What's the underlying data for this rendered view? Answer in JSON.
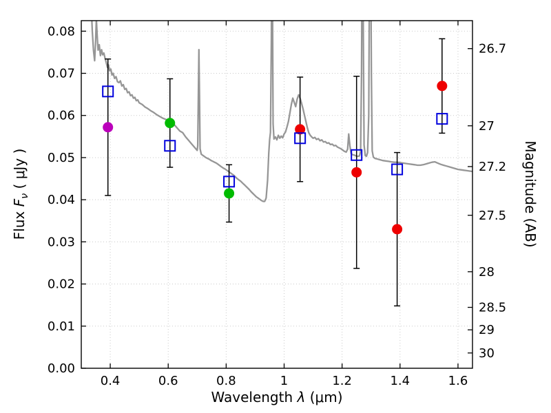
{
  "labels": {
    "xlabel_prefix": "Wavelength  ",
    "xlabel_symbol": "λ",
    "xlabel_suffix": " (μm)",
    "ylabel_left_prefix": "Flux  ",
    "ylabel_left_symbol": "F",
    "ylabel_left_subscript": "ν",
    "ylabel_left_suffix": "  ( μJy )",
    "ylabel_right": "Magnitude (AB)"
  },
  "style": {
    "background": "#ffffff",
    "frame_color": "#000000",
    "grid_color": "#c8c8c8",
    "spectrum_color": "#969696",
    "square_color": "#0000dd",
    "errorbar_color": "#000000",
    "tick_label_size": 18
  },
  "chart_data": {
    "type": "line",
    "title": "",
    "xlabel": "Wavelength λ (μm)",
    "ylabel": "Flux Fν (μJy)",
    "ylabel_right": "Magnitude (AB)",
    "xlim": [
      0.3,
      1.65
    ],
    "ylim": [
      0.0,
      0.0825
    ],
    "ab_zeropoint_ujy": 23.9,
    "grid": true,
    "legend": false,
    "x_ticks": [
      {
        "value": 0.4,
        "label": "0.4"
      },
      {
        "value": 0.6,
        "label": "0.6"
      },
      {
        "value": 0.8,
        "label": "0.8"
      },
      {
        "value": 1.0,
        "label": "1"
      },
      {
        "value": 1.2,
        "label": "1.2"
      },
      {
        "value": 1.4,
        "label": "1.4"
      },
      {
        "value": 1.6,
        "label": "1.6"
      }
    ],
    "y_ticks": [
      {
        "value": 0.0,
        "label": "0.00"
      },
      {
        "value": 0.01,
        "label": "0.01"
      },
      {
        "value": 0.02,
        "label": "0.02"
      },
      {
        "value": 0.03,
        "label": "0.03"
      },
      {
        "value": 0.04,
        "label": "0.04"
      },
      {
        "value": 0.05,
        "label": "0.05"
      },
      {
        "value": 0.06,
        "label": "0.06"
      },
      {
        "value": 0.07,
        "label": "0.07"
      },
      {
        "value": 0.08,
        "label": "0.08"
      }
    ],
    "magnitude_ticks": [
      {
        "value": 26.7,
        "label": "26.7"
      },
      {
        "value": 27.0,
        "label": "27"
      },
      {
        "value": 27.2,
        "label": "27.2"
      },
      {
        "value": 27.5,
        "label": "27.5"
      },
      {
        "value": 28.0,
        "label": "28"
      },
      {
        "value": 28.5,
        "label": "28.5"
      },
      {
        "value": 29.0,
        "label": "29"
      },
      {
        "value": 30.0,
        "label": "30"
      }
    ],
    "series": [
      {
        "name": "model-spectrum",
        "type": "line",
        "color": "#969696",
        "points": [
          [
            0.33,
            0.096
          ],
          [
            0.334,
            0.087
          ],
          [
            0.338,
            0.08
          ],
          [
            0.342,
            0.0755
          ],
          [
            0.346,
            0.073
          ],
          [
            0.349,
            0.0768
          ],
          [
            0.352,
            0.0828
          ],
          [
            0.355,
            0.079
          ],
          [
            0.358,
            0.0755
          ],
          [
            0.362,
            0.0768
          ],
          [
            0.366,
            0.0742
          ],
          [
            0.37,
            0.0756
          ],
          [
            0.374,
            0.0744
          ],
          [
            0.378,
            0.0748
          ],
          [
            0.382,
            0.0736
          ],
          [
            0.386,
            0.0726
          ],
          [
            0.39,
            0.0714
          ],
          [
            0.394,
            0.072
          ],
          [
            0.398,
            0.0706
          ],
          [
            0.402,
            0.071
          ],
          [
            0.406,
            0.0696
          ],
          [
            0.41,
            0.07
          ],
          [
            0.415,
            0.0688
          ],
          [
            0.42,
            0.0692
          ],
          [
            0.425,
            0.068
          ],
          [
            0.43,
            0.0678
          ],
          [
            0.435,
            0.0682
          ],
          [
            0.44,
            0.067
          ],
          [
            0.445,
            0.0673
          ],
          [
            0.45,
            0.0662
          ],
          [
            0.455,
            0.0664
          ],
          [
            0.46,
            0.0654
          ],
          [
            0.465,
            0.0656
          ],
          [
            0.47,
            0.0647
          ],
          [
            0.475,
            0.0649
          ],
          [
            0.48,
            0.0641
          ],
          [
            0.485,
            0.0643
          ],
          [
            0.49,
            0.0635
          ],
          [
            0.495,
            0.0637
          ],
          [
            0.5,
            0.063
          ],
          [
            0.51,
            0.0626
          ],
          [
            0.52,
            0.062
          ],
          [
            0.53,
            0.0616
          ],
          [
            0.54,
            0.0611
          ],
          [
            0.55,
            0.0607
          ],
          [
            0.56,
            0.0602
          ],
          [
            0.57,
            0.0598
          ],
          [
            0.58,
            0.0594
          ],
          [
            0.59,
            0.0591
          ],
          [
            0.6,
            0.0588
          ],
          [
            0.61,
            0.0585
          ],
          [
            0.62,
            0.0579
          ],
          [
            0.63,
            0.0571
          ],
          [
            0.64,
            0.0563
          ],
          [
            0.65,
            0.0559
          ],
          [
            0.66,
            0.0549
          ],
          [
            0.67,
            0.0541
          ],
          [
            0.68,
            0.0533
          ],
          [
            0.69,
            0.0525
          ],
          [
            0.7,
            0.0517
          ],
          [
            0.702,
            0.0528
          ],
          [
            0.704,
            0.0648
          ],
          [
            0.706,
            0.0756
          ],
          [
            0.708,
            0.064
          ],
          [
            0.71,
            0.0521
          ],
          [
            0.714,
            0.0508
          ],
          [
            0.718,
            0.0506
          ],
          [
            0.724,
            0.0503
          ],
          [
            0.73,
            0.05
          ],
          [
            0.736,
            0.0498
          ],
          [
            0.742,
            0.0496
          ],
          [
            0.748,
            0.0493
          ],
          [
            0.754,
            0.0491
          ],
          [
            0.76,
            0.0489
          ],
          [
            0.766,
            0.0487
          ],
          [
            0.772,
            0.0484
          ],
          [
            0.778,
            0.0481
          ],
          [
            0.784,
            0.0478
          ],
          [
            0.79,
            0.0475
          ],
          [
            0.796,
            0.0473
          ],
          [
            0.802,
            0.047
          ],
          [
            0.808,
            0.0467
          ],
          [
            0.814,
            0.0464
          ],
          [
            0.82,
            0.0461
          ],
          [
            0.826,
            0.0458
          ],
          [
            0.832,
            0.0454
          ],
          [
            0.838,
            0.045
          ],
          [
            0.844,
            0.0447
          ],
          [
            0.85,
            0.0444
          ],
          [
            0.856,
            0.044
          ],
          [
            0.862,
            0.0436
          ],
          [
            0.868,
            0.0432
          ],
          [
            0.874,
            0.0428
          ],
          [
            0.88,
            0.0424
          ],
          [
            0.886,
            0.0419
          ],
          [
            0.892,
            0.0415
          ],
          [
            0.898,
            0.0411
          ],
          [
            0.904,
            0.0407
          ],
          [
            0.91,
            0.0404
          ],
          [
            0.916,
            0.0401
          ],
          [
            0.922,
            0.0398
          ],
          [
            0.928,
            0.0396
          ],
          [
            0.933,
            0.0396
          ],
          [
            0.938,
            0.0404
          ],
          [
            0.943,
            0.0446
          ],
          [
            0.947,
            0.051
          ],
          [
            0.95,
            0.0543
          ],
          [
            0.953,
            0.056
          ],
          [
            0.956,
            0.078
          ],
          [
            0.958,
            0.11
          ],
          [
            0.96,
            0.085
          ],
          [
            0.962,
            0.058
          ],
          [
            0.965,
            0.0544
          ],
          [
            0.97,
            0.0549
          ],
          [
            0.975,
            0.0542
          ],
          [
            0.98,
            0.0553
          ],
          [
            0.985,
            0.0546
          ],
          [
            0.99,
            0.0551
          ],
          [
            0.995,
            0.0547
          ],
          [
            1.0,
            0.0556
          ],
          [
            1.005,
            0.0561
          ],
          [
            1.01,
            0.0573
          ],
          [
            1.015,
            0.0586
          ],
          [
            1.02,
            0.0606
          ],
          [
            1.025,
            0.0626
          ],
          [
            1.03,
            0.0641
          ],
          [
            1.035,
            0.0631
          ],
          [
            1.04,
            0.0621
          ],
          [
            1.045,
            0.0639
          ],
          [
            1.05,
            0.0649
          ],
          [
            1.055,
            0.0641
          ],
          [
            1.06,
            0.0629
          ],
          [
            1.065,
            0.0616
          ],
          [
            1.07,
            0.0601
          ],
          [
            1.075,
            0.0586
          ],
          [
            1.08,
            0.0571
          ],
          [
            1.085,
            0.0559
          ],
          [
            1.09,
            0.0553
          ],
          [
            1.095,
            0.0549
          ],
          [
            1.1,
            0.0546
          ],
          [
            1.106,
            0.0548
          ],
          [
            1.112,
            0.0543
          ],
          [
            1.118,
            0.0545
          ],
          [
            1.124,
            0.054
          ],
          [
            1.13,
            0.0542
          ],
          [
            1.136,
            0.0537
          ],
          [
            1.142,
            0.0538
          ],
          [
            1.148,
            0.0534
          ],
          [
            1.154,
            0.0535
          ],
          [
            1.16,
            0.0531
          ],
          [
            1.166,
            0.0532
          ],
          [
            1.172,
            0.0528
          ],
          [
            1.178,
            0.0529
          ],
          [
            1.184,
            0.0525
          ],
          [
            1.19,
            0.0523
          ],
          [
            1.196,
            0.0521
          ],
          [
            1.202,
            0.0518
          ],
          [
            1.208,
            0.0515
          ],
          [
            1.214,
            0.0513
          ],
          [
            1.219,
            0.052
          ],
          [
            1.223,
            0.0556
          ],
          [
            1.227,
            0.0528
          ],
          [
            1.231,
            0.051
          ],
          [
            1.236,
            0.0507
          ],
          [
            1.242,
            0.0506
          ],
          [
            1.248,
            0.0504
          ],
          [
            1.254,
            0.0503
          ],
          [
            1.26,
            0.0504
          ],
          [
            1.264,
            0.0515
          ],
          [
            1.267,
            0.07
          ],
          [
            1.27,
            0.11
          ],
          [
            1.273,
            0.082
          ],
          [
            1.276,
            0.053
          ],
          [
            1.28,
            0.0505
          ],
          [
            1.284,
            0.0503
          ],
          [
            1.288,
            0.0512
          ],
          [
            1.292,
            0.06
          ],
          [
            1.295,
            0.1
          ],
          [
            1.298,
            0.11
          ],
          [
            1.301,
            0.07
          ],
          [
            1.304,
            0.0516
          ],
          [
            1.308,
            0.0501
          ],
          [
            1.314,
            0.0498
          ],
          [
            1.32,
            0.0497
          ],
          [
            1.33,
            0.0495
          ],
          [
            1.34,
            0.0493
          ],
          [
            1.35,
            0.0492
          ],
          [
            1.36,
            0.0491
          ],
          [
            1.37,
            0.049
          ],
          [
            1.38,
            0.0489
          ],
          [
            1.39,
            0.0489
          ],
          [
            1.4,
            0.0488
          ],
          [
            1.41,
            0.0487
          ],
          [
            1.42,
            0.0486
          ],
          [
            1.43,
            0.0485
          ],
          [
            1.44,
            0.0484
          ],
          [
            1.45,
            0.0483
          ],
          [
            1.46,
            0.0482
          ],
          [
            1.47,
            0.0482
          ],
          [
            1.48,
            0.0483
          ],
          [
            1.49,
            0.0485
          ],
          [
            1.5,
            0.0487
          ],
          [
            1.51,
            0.0489
          ],
          [
            1.52,
            0.049
          ],
          [
            1.53,
            0.0487
          ],
          [
            1.54,
            0.0484
          ],
          [
            1.55,
            0.0482
          ],
          [
            1.56,
            0.048
          ],
          [
            1.57,
            0.0478
          ],
          [
            1.58,
            0.0476
          ],
          [
            1.59,
            0.0474
          ],
          [
            1.6,
            0.0472
          ],
          [
            1.61,
            0.0471
          ],
          [
            1.62,
            0.047
          ],
          [
            1.63,
            0.0469
          ],
          [
            1.64,
            0.0468
          ],
          [
            1.65,
            0.0467
          ]
        ]
      },
      {
        "name": "observed-photometry",
        "type": "scatter",
        "marker": "filled-circle",
        "points": [
          {
            "x": 0.392,
            "y": 0.0572,
            "yerr": 0.0162,
            "color": "#bb00bb"
          },
          {
            "x": 0.606,
            "y": 0.0582,
            "yerr": 0.0105,
            "color": "#00bb00"
          },
          {
            "x": 0.81,
            "y": 0.0415,
            "yerr": 0.0068,
            "color": "#00bb00"
          },
          {
            "x": 1.055,
            "y": 0.0567,
            "yerr": 0.0124,
            "color": "#ee0000"
          },
          {
            "x": 1.25,
            "y": 0.0465,
            "yerr": 0.0228,
            "color": "#ee0000"
          },
          {
            "x": 1.39,
            "y": 0.033,
            "yerr": 0.0182,
            "color": "#ee0000"
          },
          {
            "x": 1.545,
            "y": 0.067,
            "yerr": 0.0112,
            "color": "#ee0000"
          }
        ]
      },
      {
        "name": "model-photometry",
        "type": "scatter",
        "marker": "open-square",
        "color": "#0000dd",
        "points": [
          {
            "x": 0.392,
            "y": 0.0657
          },
          {
            "x": 0.606,
            "y": 0.0528
          },
          {
            "x": 0.81,
            "y": 0.0443
          },
          {
            "x": 1.055,
            "y": 0.0546
          },
          {
            "x": 1.25,
            "y": 0.0506
          },
          {
            "x": 1.39,
            "y": 0.0472
          },
          {
            "x": 1.545,
            "y": 0.0592
          }
        ]
      }
    ]
  }
}
